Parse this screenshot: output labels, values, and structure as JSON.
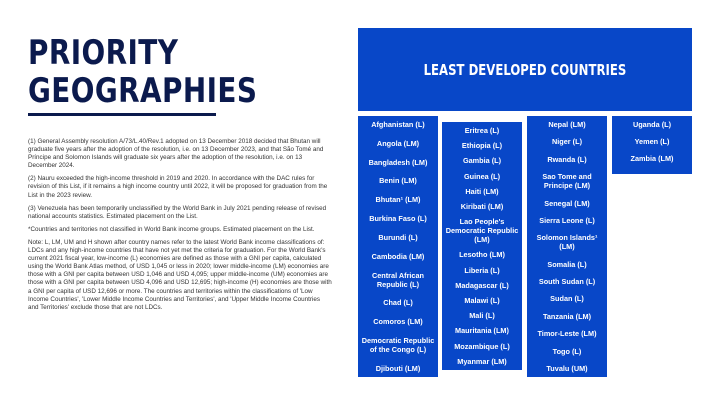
{
  "title_lines": [
    "PRIORITY",
    "GEOGRAPHIES"
  ],
  "notes": [
    "(1) General Assembly resolution A/73/L.40/Rev.1 adopted on 13 December 2018 decided that Bhutan will graduate five years after the adoption of the resolution, i.e. on 13 December 2023, and that São Tomé and Príncipe and Solomon Islands will graduate six years after the adoption of the resolution, i.e. on 13 December 2024.",
    "(2) Nauru exceeded the high-income threshold in 2019 and 2020. In accordance with the DAC rules for revision of this List, if it remains a high income country until 2022, it will be proposed for graduation from the List in the 2023 review.",
    "(3) Venezuela has been temporarily unclassified by the World Bank in July 2021 pending release of revised national accounts statistics. Estimated placement on the List.",
    "*Countries and territories not classified in World Bank income groups. Estimated placement on the List.",
    "Note: L, LM, UM and H shown after country names refer to the latest World Bank income classifications of: LDCs and any high-income countries that have not yet met the criteria for graduation. For the World Bank's current 2021 fiscal year,  low-income (L) economies are defined as those with a GNI per capita, calculated using the  World Bank Atlas  method, of USD 1,045 or less in 2020; lower middle-income (LM) economies are those with a GNI per capita between USD 1,046 and USD 4,095; upper middle-income (UM) economies are those with a GNI per capita between USD 4,096 and USD 12,695; high-income (H) economies are those with a GNI per capita of USD 12,696 or more. The countries and territories within the classifications of 'Low Income Countries', 'Lower Middle Income Countries and Territories', and 'Upper Middle Income Countries and Territories' exclude those that are not LDCs."
  ],
  "ldc_header": "LEAST DEVELOPED COUNTRIES",
  "columns": [
    [
      "Afghanistan (L)",
      "Angola (LM)",
      "Bangladesh (LM)",
      "Benin (LM)",
      "Bhutan¹ (LM)",
      "Burkina Faso (L)",
      "Burundi (L)",
      "Cambodia (LM)",
      "Central African Republic (L)",
      "Chad (L)",
      "Comoros (LM)",
      "Democratic Republic of the Congo (L)",
      "Djibouti (LM)"
    ],
    [
      "Eritrea (L)",
      "Ethiopia (L)",
      "Gambia (L)",
      "Guinea (L)",
      "Haiti (LM)",
      "Kiribati (LM)",
      "Lao People's Democratic Republic (LM)",
      "Lesotho (LM)",
      "Liberia (L)",
      "Madagascar (L)",
      "Malawi (L)",
      "Mali (L)",
      "Mauritania (LM)",
      "Mozambique (L)",
      "Myanmar (LM)"
    ],
    [
      "Nepal (LM)",
      "Niger (L)",
      "Rwanda (L)",
      "Sao Tome and Principe (LM)",
      "Senegal (LM)",
      "Sierra Leone (L)",
      "Solomon Islands¹ (LM)",
      "Somalia (L)",
      "South Sudan (L)",
      "Sudan (L)",
      "Tanzania (LM)",
      "Timor-Leste (LM)",
      "Togo (L)",
      "Tuvalu (UM)"
    ],
    [
      "Uganda (L)",
      "Yemen (L)",
      "Zambia (LM)"
    ]
  ]
}
